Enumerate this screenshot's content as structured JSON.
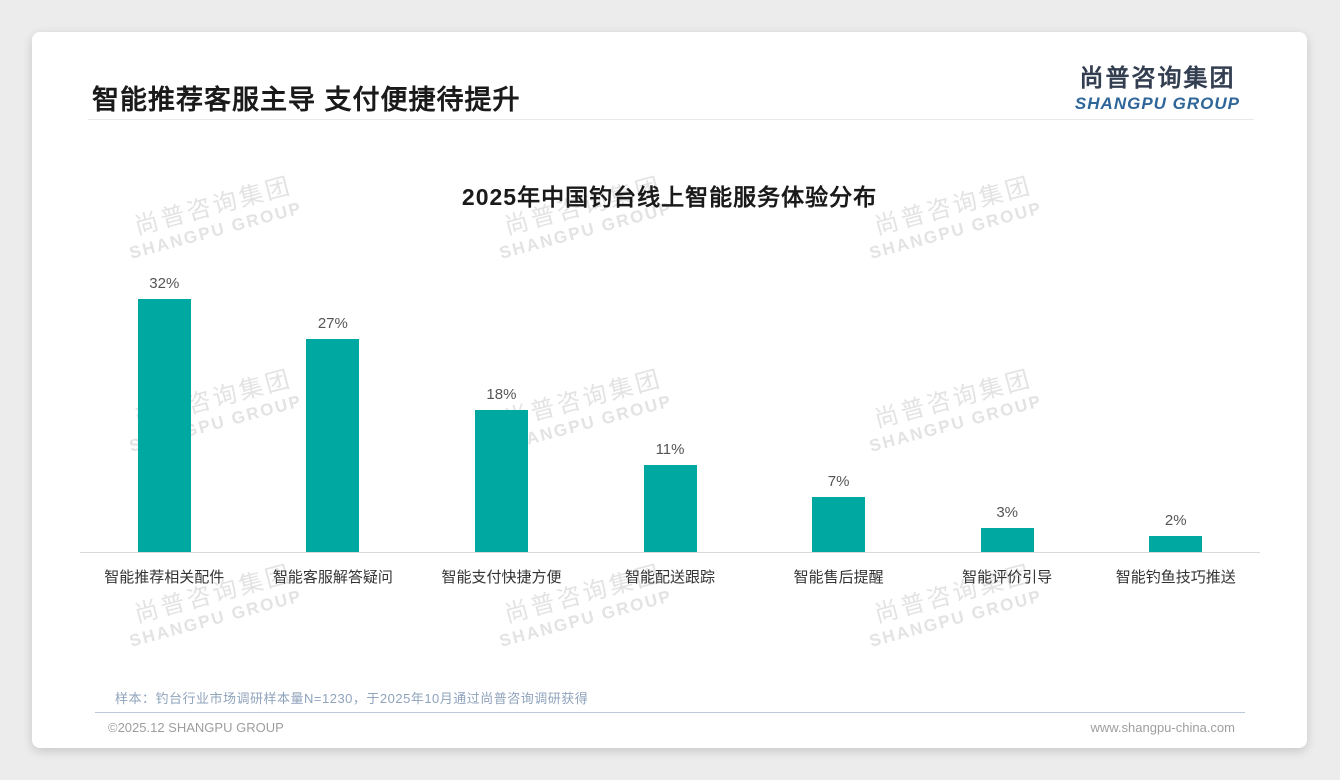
{
  "header": {
    "title": "智能推荐客服主导 支付便捷待提升",
    "logo": {
      "cn": "尚普咨询集团",
      "en": "SHANGPU GROUP"
    }
  },
  "chart_data": {
    "type": "bar",
    "title": "2025年中国钓台线上智能服务体验分布",
    "categories": [
      "智能推荐相关配件",
      "智能客服解答疑问",
      "智能支付快捷方便",
      "智能配送跟踪",
      "智能售后提醒",
      "智能评价引导",
      "智能钓鱼技巧推送"
    ],
    "values": [
      32,
      27,
      18,
      11,
      7,
      3,
      2
    ],
    "unit": "%",
    "value_labels": [
      "32%",
      "27%",
      "18%",
      "11%",
      "7%",
      "3%",
      "2%"
    ],
    "bar_color": "#00a8a2",
    "ylim": [
      0,
      35
    ],
    "grid": false,
    "legend": "none",
    "xlabel": "",
    "ylabel": ""
  },
  "watermark": {
    "cn": "尚普咨询集团",
    "en": "SHANGPU GROUP"
  },
  "footer": {
    "note": "样本：钓台行业市场调研样本量N=1230，于2025年10月通过尚普咨询调研获得",
    "copyright": "©2025.12 SHANGPU GROUP",
    "website": "www.shangpu-china.com"
  }
}
